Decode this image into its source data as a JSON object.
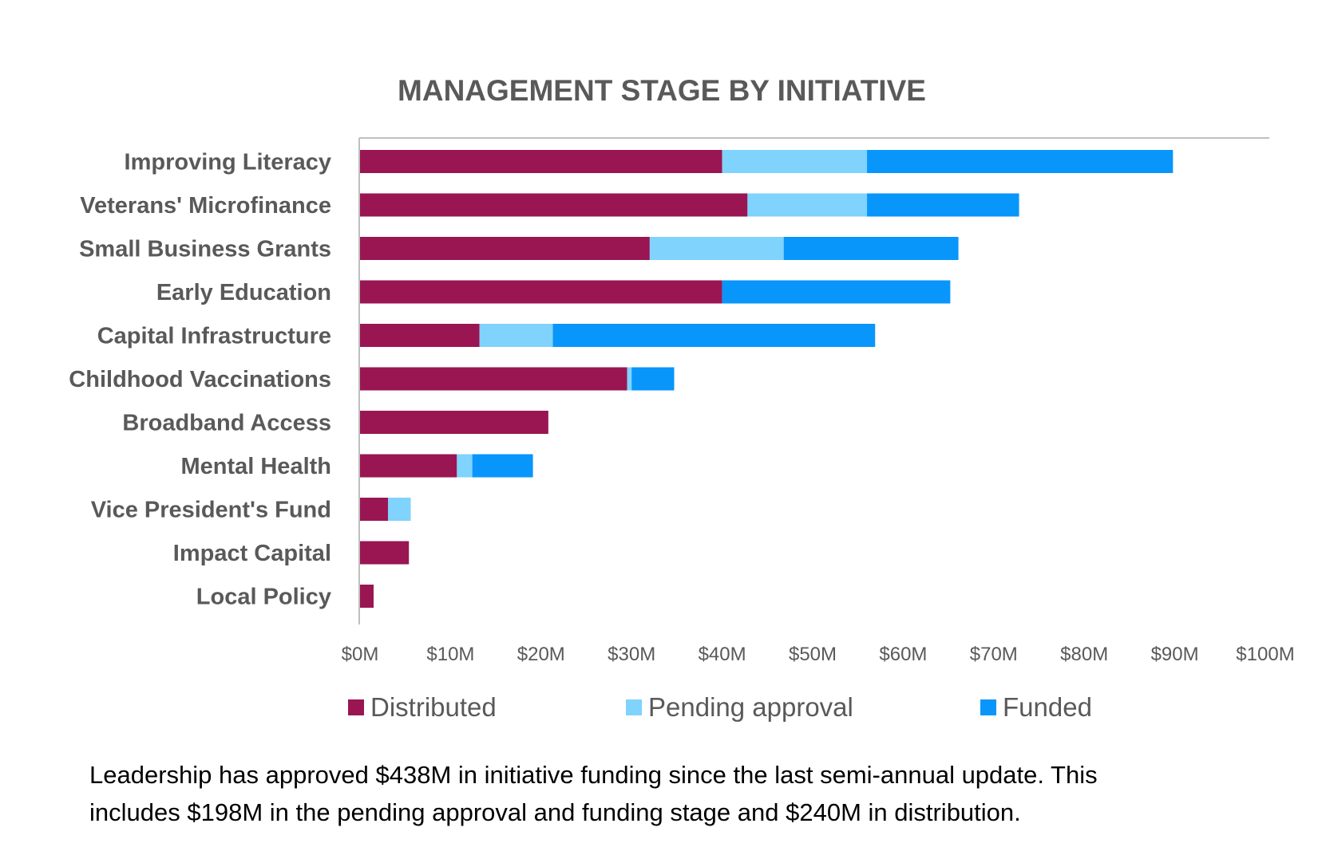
{
  "colors": {
    "distributed": "#991652",
    "pending": "#7fd3fc",
    "funded": "#0896fb",
    "axis": "#bfbfbf",
    "text": "#595959"
  },
  "chart_data": {
    "type": "bar",
    "orientation": "horizontal",
    "stacked": true,
    "title": "MANAGEMENT STAGE BY INITIATIVE",
    "xlabel": "",
    "ylabel": "",
    "xlim": [
      0,
      100
    ],
    "x_ticks": [
      "$0M",
      "$10M",
      "$20M",
      "$30M",
      "$40M",
      "$50M",
      "$60M",
      "$70M",
      "$80M",
      "$90M",
      "$100M"
    ],
    "categories": [
      "Improving Literacy",
      "Veterans' Microfinance",
      "Small Business Grants",
      "Early Education",
      "Capital Infrastructure",
      "Childhood Vaccinations",
      "Broadband Access",
      "Mental Health",
      "Vice President's Fund",
      "Impact Capital",
      "Local Policy"
    ],
    "series": [
      {
        "name": "Distributed",
        "values": [
          40,
          42.8,
          32,
          40,
          13.2,
          29.5,
          20.8,
          10.7,
          3.1,
          5.4,
          1.5
        ]
      },
      {
        "name": "Pending approval",
        "values": [
          16,
          13.2,
          14.8,
          0,
          8.1,
          0.5,
          0,
          1.7,
          2.5,
          0,
          0
        ]
      },
      {
        "name": "Funded",
        "values": [
          33.8,
          16.8,
          19.3,
          25.2,
          35.6,
          4.7,
          0,
          6.7,
          0,
          0,
          0
        ]
      }
    ],
    "legend_position": "bottom",
    "grid": false
  },
  "caption": {
    "line1": "Leadership has approved  $438M in initiative funding since the last semi-annual update. This",
    "line2": "includes $198M in the pending approval  and funding stage and $240M in distribution."
  }
}
